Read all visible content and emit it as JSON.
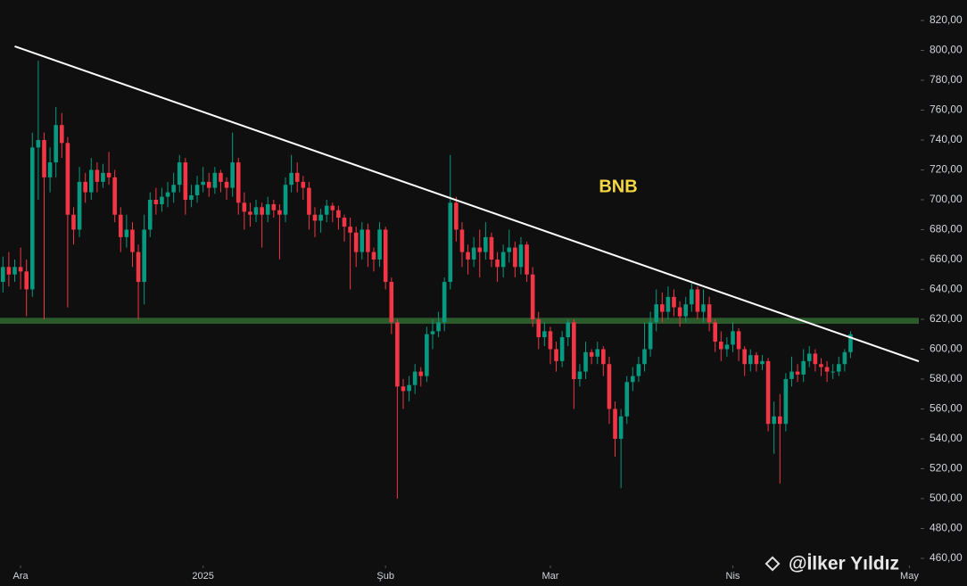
{
  "chart_data": {
    "type": "candlestick",
    "title": "BNB",
    "open": [
      645,
      655,
      650,
      655,
      652,
      640,
      735,
      740,
      715,
      725,
      750,
      738,
      690,
      680,
      712,
      705,
      720,
      712,
      718,
      715,
      690,
      675,
      680,
      665,
      645,
      680,
      700,
      697,
      702,
      705,
      710,
      725,
      700,
      703,
      710,
      712,
      708,
      718,
      712,
      708,
      725,
      698,
      692,
      690,
      695,
      690,
      697,
      693,
      690,
      710,
      718,
      712,
      708,
      690,
      686,
      690,
      696,
      693,
      688,
      682,
      678,
      665,
      680,
      665,
      660,
      680,
      645,
      618,
      575,
      572,
      576,
      585,
      582,
      610,
      612,
      618,
      645,
      698,
      680,
      665,
      660,
      668,
      665,
      675,
      660,
      655,
      665,
      668,
      655,
      670,
      650,
      620,
      608,
      612,
      600,
      592,
      608,
      618,
      580,
      585,
      598,
      595,
      600,
      590,
      560,
      540,
      555,
      578,
      582,
      590,
      600,
      618,
      630,
      625,
      635,
      628,
      622,
      630,
      640,
      625,
      630,
      618,
      605,
      600,
      603,
      612,
      600,
      590,
      596,
      590,
      592,
      550,
      555,
      550,
      580,
      585,
      583,
      592,
      597,
      590,
      588,
      585,
      585,
      590,
      598
    ],
    "high": [
      662,
      665,
      660,
      668,
      660,
      745,
      793,
      745,
      735,
      762,
      758,
      742,
      695,
      722,
      718,
      728,
      725,
      724,
      732,
      720,
      695,
      690,
      685,
      670,
      690,
      705,
      708,
      708,
      712,
      718,
      730,
      728,
      710,
      716,
      722,
      718,
      722,
      720,
      715,
      745,
      728,
      705,
      698,
      700,
      698,
      702,
      700,
      697,
      715,
      730,
      725,
      716,
      712,
      695,
      694,
      700,
      698,
      696,
      690,
      688,
      682,
      685,
      684,
      668,
      685,
      682,
      648,
      620,
      580,
      582,
      590,
      588,
      615,
      620,
      625,
      648,
      730,
      702,
      685,
      670,
      675,
      680,
      685,
      678,
      665,
      670,
      680,
      672,
      675,
      672,
      655,
      625,
      618,
      615,
      605,
      612,
      620,
      620,
      590,
      605,
      600,
      605,
      602,
      595,
      565,
      560,
      582,
      588,
      595,
      618,
      625,
      640,
      638,
      642,
      640,
      632,
      635,
      644,
      642,
      640,
      635,
      620,
      612,
      608,
      618,
      614,
      602,
      600,
      598,
      596,
      594,
      565,
      570,
      584,
      595,
      590,
      600,
      602,
      600,
      594,
      592,
      590,
      595,
      600,
      612
    ],
    "low": [
      638,
      642,
      645,
      640,
      622,
      635,
      700,
      620,
      705,
      715,
      728,
      628,
      670,
      675,
      698,
      700,
      705,
      708,
      710,
      685,
      665,
      668,
      655,
      620,
      630,
      675,
      690,
      692,
      695,
      698,
      705,
      690,
      695,
      698,
      705,
      702,
      704,
      705,
      700,
      702,
      690,
      680,
      682,
      685,
      668,
      685,
      688,
      660,
      685,
      705,
      705,
      700,
      680,
      675,
      678,
      685,
      685,
      680,
      672,
      640,
      655,
      660,
      655,
      652,
      655,
      640,
      610,
      500,
      560,
      565,
      570,
      575,
      578,
      600,
      608,
      612,
      640,
      672,
      655,
      650,
      655,
      648,
      660,
      655,
      645,
      648,
      658,
      648,
      650,
      645,
      615,
      600,
      602,
      590,
      585,
      588,
      602,
      560,
      575,
      580,
      590,
      590,
      582,
      550,
      528,
      507,
      550,
      572,
      578,
      585,
      595,
      612,
      618,
      620,
      622,
      615,
      618,
      625,
      620,
      618,
      612,
      598,
      592,
      595,
      598,
      592,
      582,
      585,
      585,
      586,
      545,
      530,
      510,
      545,
      575,
      578,
      578,
      588,
      585,
      582,
      578,
      580,
      582,
      585,
      594
    ],
    "close": [
      655,
      650,
      655,
      652,
      640,
      735,
      740,
      715,
      725,
      750,
      738,
      690,
      680,
      712,
      705,
      720,
      712,
      718,
      715,
      690,
      675,
      680,
      665,
      645,
      680,
      700,
      697,
      702,
      705,
      710,
      725,
      700,
      703,
      710,
      712,
      708,
      718,
      712,
      708,
      725,
      698,
      692,
      690,
      695,
      690,
      697,
      693,
      690,
      710,
      718,
      712,
      708,
      690,
      686,
      690,
      696,
      693,
      688,
      682,
      678,
      665,
      680,
      665,
      660,
      680,
      645,
      618,
      575,
      572,
      576,
      585,
      582,
      610,
      612,
      618,
      645,
      698,
      680,
      665,
      660,
      668,
      665,
      675,
      660,
      655,
      665,
      668,
      655,
      670,
      650,
      620,
      608,
      612,
      600,
      592,
      608,
      618,
      580,
      585,
      598,
      595,
      600,
      590,
      560,
      540,
      555,
      578,
      582,
      590,
      600,
      618,
      630,
      625,
      635,
      628,
      622,
      630,
      640,
      625,
      630,
      618,
      605,
      600,
      603,
      612,
      600,
      590,
      596,
      590,
      592,
      550,
      555,
      550,
      580,
      585,
      583,
      592,
      597,
      590,
      588,
      585,
      585,
      590,
      598,
      610
    ],
    "up_color": "#089981",
    "down_color": "#f23645",
    "xlim": [
      -0.5,
      155.6
    ],
    "xticks": [
      {
        "value": 3,
        "label": "Ara"
      },
      {
        "value": 34,
        "label": "2025"
      },
      {
        "value": 65,
        "label": "Şub"
      },
      {
        "value": 93,
        "label": "Mar"
      },
      {
        "value": 124,
        "label": "Nis"
      },
      {
        "value": 154,
        "label": "May"
      }
    ],
    "ylim": [
      457.6,
      833.7
    ],
    "yticks": [
      {
        "value": 460,
        "label": "460,00"
      },
      {
        "value": 480,
        "label": "480,00"
      },
      {
        "value": 500,
        "label": "500,00"
      },
      {
        "value": 520,
        "label": "520,00"
      },
      {
        "value": 540,
        "label": "540,00"
      },
      {
        "value": 560,
        "label": "560,00"
      },
      {
        "value": 580,
        "label": "580,00"
      },
      {
        "value": 600,
        "label": "600,00"
      },
      {
        "value": 620,
        "label": "620,00"
      },
      {
        "value": 640,
        "label": "640,00"
      },
      {
        "value": 660,
        "label": "660,00"
      },
      {
        "value": 680,
        "label": "680,00"
      },
      {
        "value": 700,
        "label": "700,00"
      },
      {
        "value": 720,
        "label": "720,00"
      },
      {
        "value": 740,
        "label": "740,00"
      },
      {
        "value": 760,
        "label": "760,00"
      },
      {
        "value": 780,
        "label": "780,00"
      },
      {
        "value": 800,
        "label": "800,00"
      },
      {
        "value": 820,
        "label": "820,00"
      }
    ],
    "trendline": {
      "x": [
        2,
        155.6
      ],
      "y": [
        802.7,
        591.9
      ],
      "color": "#ffffff"
    },
    "support_zone": {
      "range": [
        617,
        621
      ],
      "color": "#2b5a2b"
    },
    "watermark": "@İlker Yıldız"
  }
}
